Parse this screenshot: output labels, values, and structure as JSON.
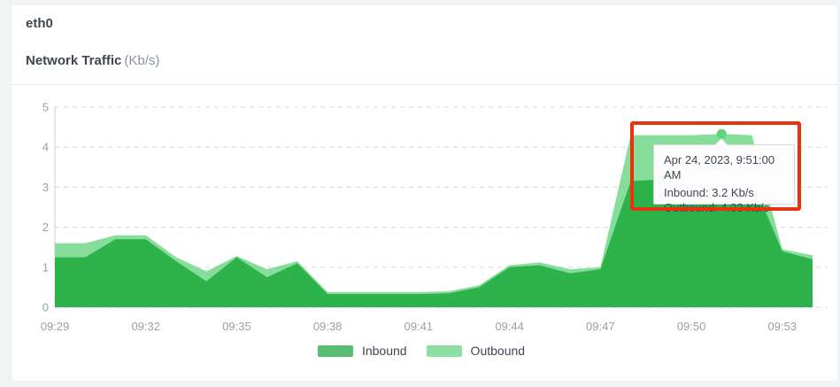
{
  "header": {
    "interface_name": "eth0",
    "chart_title": "Network Traffic",
    "chart_unit": "(Kb/s)"
  },
  "tooltip": {
    "timestamp": "Apr 24, 2023, 9:51:00 AM",
    "inbound_line": "Inbound: 3.2 Kb/s",
    "outbound_line": "Outbound: 4.33 Kb/s"
  },
  "legend": {
    "items": [
      {
        "label": "Inbound",
        "swatch_color": "#57bd72"
      },
      {
        "label": "Outbound",
        "swatch_color": "#8ce0a2"
      }
    ]
  },
  "colors": {
    "page_bg": "#f2f3f5",
    "card_bg": "#ffffff",
    "text": "#3f4650",
    "muted": "#8b939b",
    "tick": "#9aa0a6",
    "divider": "#e9e9e9",
    "grid": "#e4e4e4",
    "axis_line": "#cfcfcf",
    "inbound": "#2db24c",
    "outbound": "#87de9a",
    "hover_dot": "#5ed47b",
    "annotation": "#e7330e",
    "tooltip_bg": "#fdfdfd",
    "tooltip_border": "#d8d8d8"
  },
  "chart_data": {
    "type": "area",
    "title": "Network Traffic",
    "ylabel": "Kb/s",
    "xlabel": "",
    "x": [
      "09:29",
      "09:30",
      "09:31",
      "09:32",
      "09:33",
      "09:34",
      "09:35",
      "09:36",
      "09:37",
      "09:38",
      "09:39",
      "09:40",
      "09:41",
      "09:42",
      "09:43",
      "09:44",
      "09:45",
      "09:46",
      "09:47",
      "09:48",
      "09:49",
      "09:50",
      "09:51",
      "09:52",
      "09:53",
      "09:54"
    ],
    "x_tick_every": 3,
    "ylim": [
      0,
      5
    ],
    "yticks": [
      0,
      1,
      2,
      3,
      4,
      5
    ],
    "grid": "horizontal-dashed",
    "legend_position": "bottom",
    "series": [
      {
        "name": "Inbound",
        "color": "#2db24c",
        "values": [
          1.25,
          1.25,
          1.7,
          1.7,
          1.15,
          0.65,
          1.25,
          0.75,
          1.1,
          0.33,
          0.33,
          0.33,
          0.33,
          0.35,
          0.5,
          1.0,
          1.05,
          0.85,
          0.95,
          3.15,
          3.2,
          3.2,
          3.2,
          3.2,
          1.4,
          1.2
        ]
      },
      {
        "name": "Outbound",
        "color": "#87de9a",
        "values": [
          1.6,
          1.6,
          1.8,
          1.8,
          1.25,
          0.9,
          1.28,
          0.95,
          1.15,
          0.38,
          0.38,
          0.38,
          0.38,
          0.4,
          0.55,
          1.05,
          1.12,
          0.95,
          1.0,
          4.3,
          4.3,
          4.3,
          4.33,
          4.3,
          1.45,
          1.3
        ]
      }
    ],
    "hover_point": {
      "index": 22,
      "x": "09:51",
      "series_values": {
        "Inbound": 3.2,
        "Outbound": 4.33
      },
      "marker_color": "#5ed47b"
    }
  }
}
